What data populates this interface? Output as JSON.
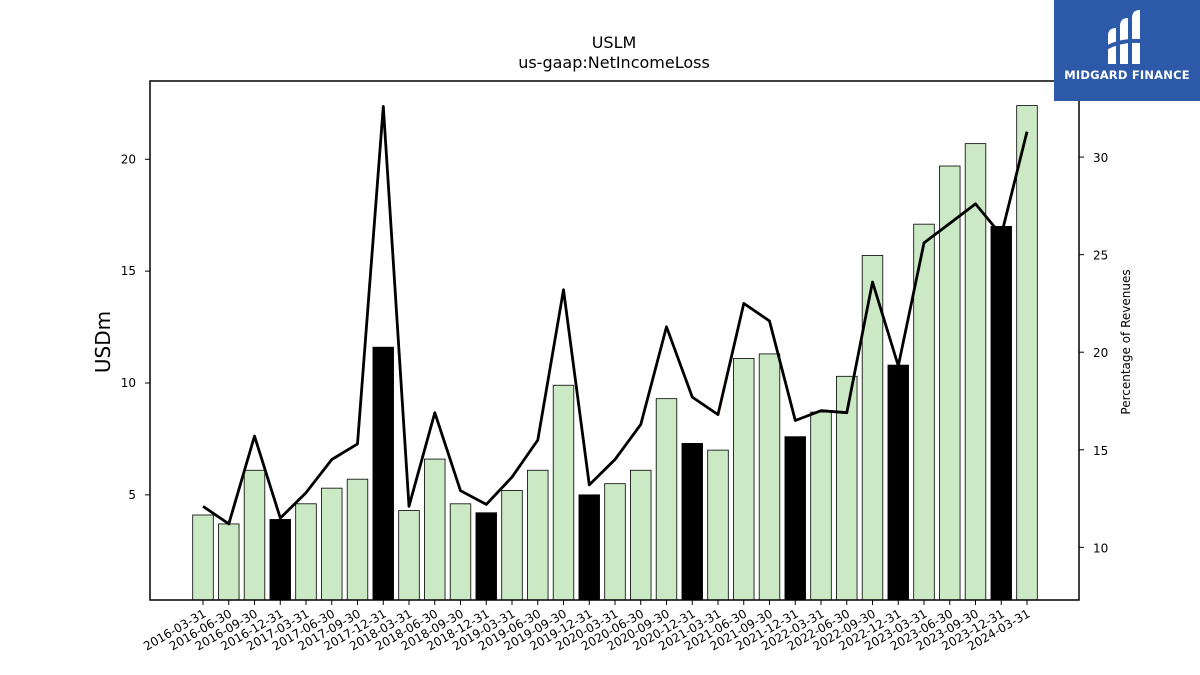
{
  "chart_data": {
    "type": "bar",
    "title": "USLM",
    "subtitle": "us-gaap:NetIncomeLoss",
    "ylabel": "USDm",
    "y2label": "Percentage of Revenues",
    "ylim": [
      0.3,
      23.5
    ],
    "y2lim": [
      7.3,
      33.9
    ],
    "yticks": [
      5,
      10,
      15,
      20
    ],
    "y2ticks": [
      10,
      15,
      20,
      25,
      30
    ],
    "categories": [
      "2016-03-31",
      "2016-06-30",
      "2016-09-30",
      "2016-12-31",
      "2017-03-31",
      "2017-06-30",
      "2017-09-30",
      "2017-12-31",
      "2018-03-31",
      "2018-06-30",
      "2018-09-30",
      "2018-12-31",
      "2019-03-31",
      "2019-06-30",
      "2019-09-30",
      "2019-12-31",
      "2020-03-31",
      "2020-06-30",
      "2020-09-30",
      "2020-12-31",
      "2021-03-31",
      "2021-06-30",
      "2021-09-30",
      "2021-12-31",
      "2022-03-31",
      "2022-06-30",
      "2022-09-30",
      "2022-12-31",
      "2023-03-31",
      "2023-06-30",
      "2023-09-30",
      "2023-12-31",
      "2024-03-31"
    ],
    "series": [
      {
        "type": "bar",
        "axis": "left",
        "values": [
          4.1,
          3.7,
          6.1,
          3.9,
          4.6,
          5.3,
          5.7,
          11.6,
          4.3,
          6.6,
          4.6,
          4.2,
          5.2,
          6.1,
          9.9,
          5.0,
          5.5,
          6.1,
          9.3,
          7.3,
          7.0,
          11.1,
          11.3,
          7.6,
          8.7,
          10.3,
          15.7,
          10.8,
          17.1,
          19.7,
          20.7,
          17.0,
          22.4
        ],
        "highlight": [
          false,
          false,
          false,
          true,
          false,
          false,
          false,
          true,
          false,
          false,
          false,
          true,
          false,
          false,
          false,
          true,
          false,
          false,
          false,
          true,
          false,
          false,
          false,
          true,
          false,
          false,
          false,
          true,
          false,
          false,
          false,
          true,
          false
        ]
      },
      {
        "type": "line",
        "axis": "right",
        "values": [
          12.1,
          11.2,
          15.7,
          11.5,
          12.8,
          14.5,
          15.3,
          32.6,
          12.1,
          16.9,
          12.9,
          12.2,
          13.6,
          15.5,
          23.2,
          13.2,
          14.5,
          16.3,
          21.3,
          17.7,
          16.8,
          22.5,
          21.6,
          16.5,
          17.0,
          16.9,
          23.6,
          19.3,
          25.6,
          26.6,
          27.6,
          26.0,
          31.3
        ]
      }
    ],
    "colors": {
      "bar": "#cce9c5",
      "bar_highlight": "#000000",
      "bar_edge": "#000000",
      "line": "#000000"
    },
    "grid": false,
    "legend": "none"
  },
  "logo": {
    "text": "MIDGARD FINANCE",
    "color": "#2c5aa9"
  }
}
